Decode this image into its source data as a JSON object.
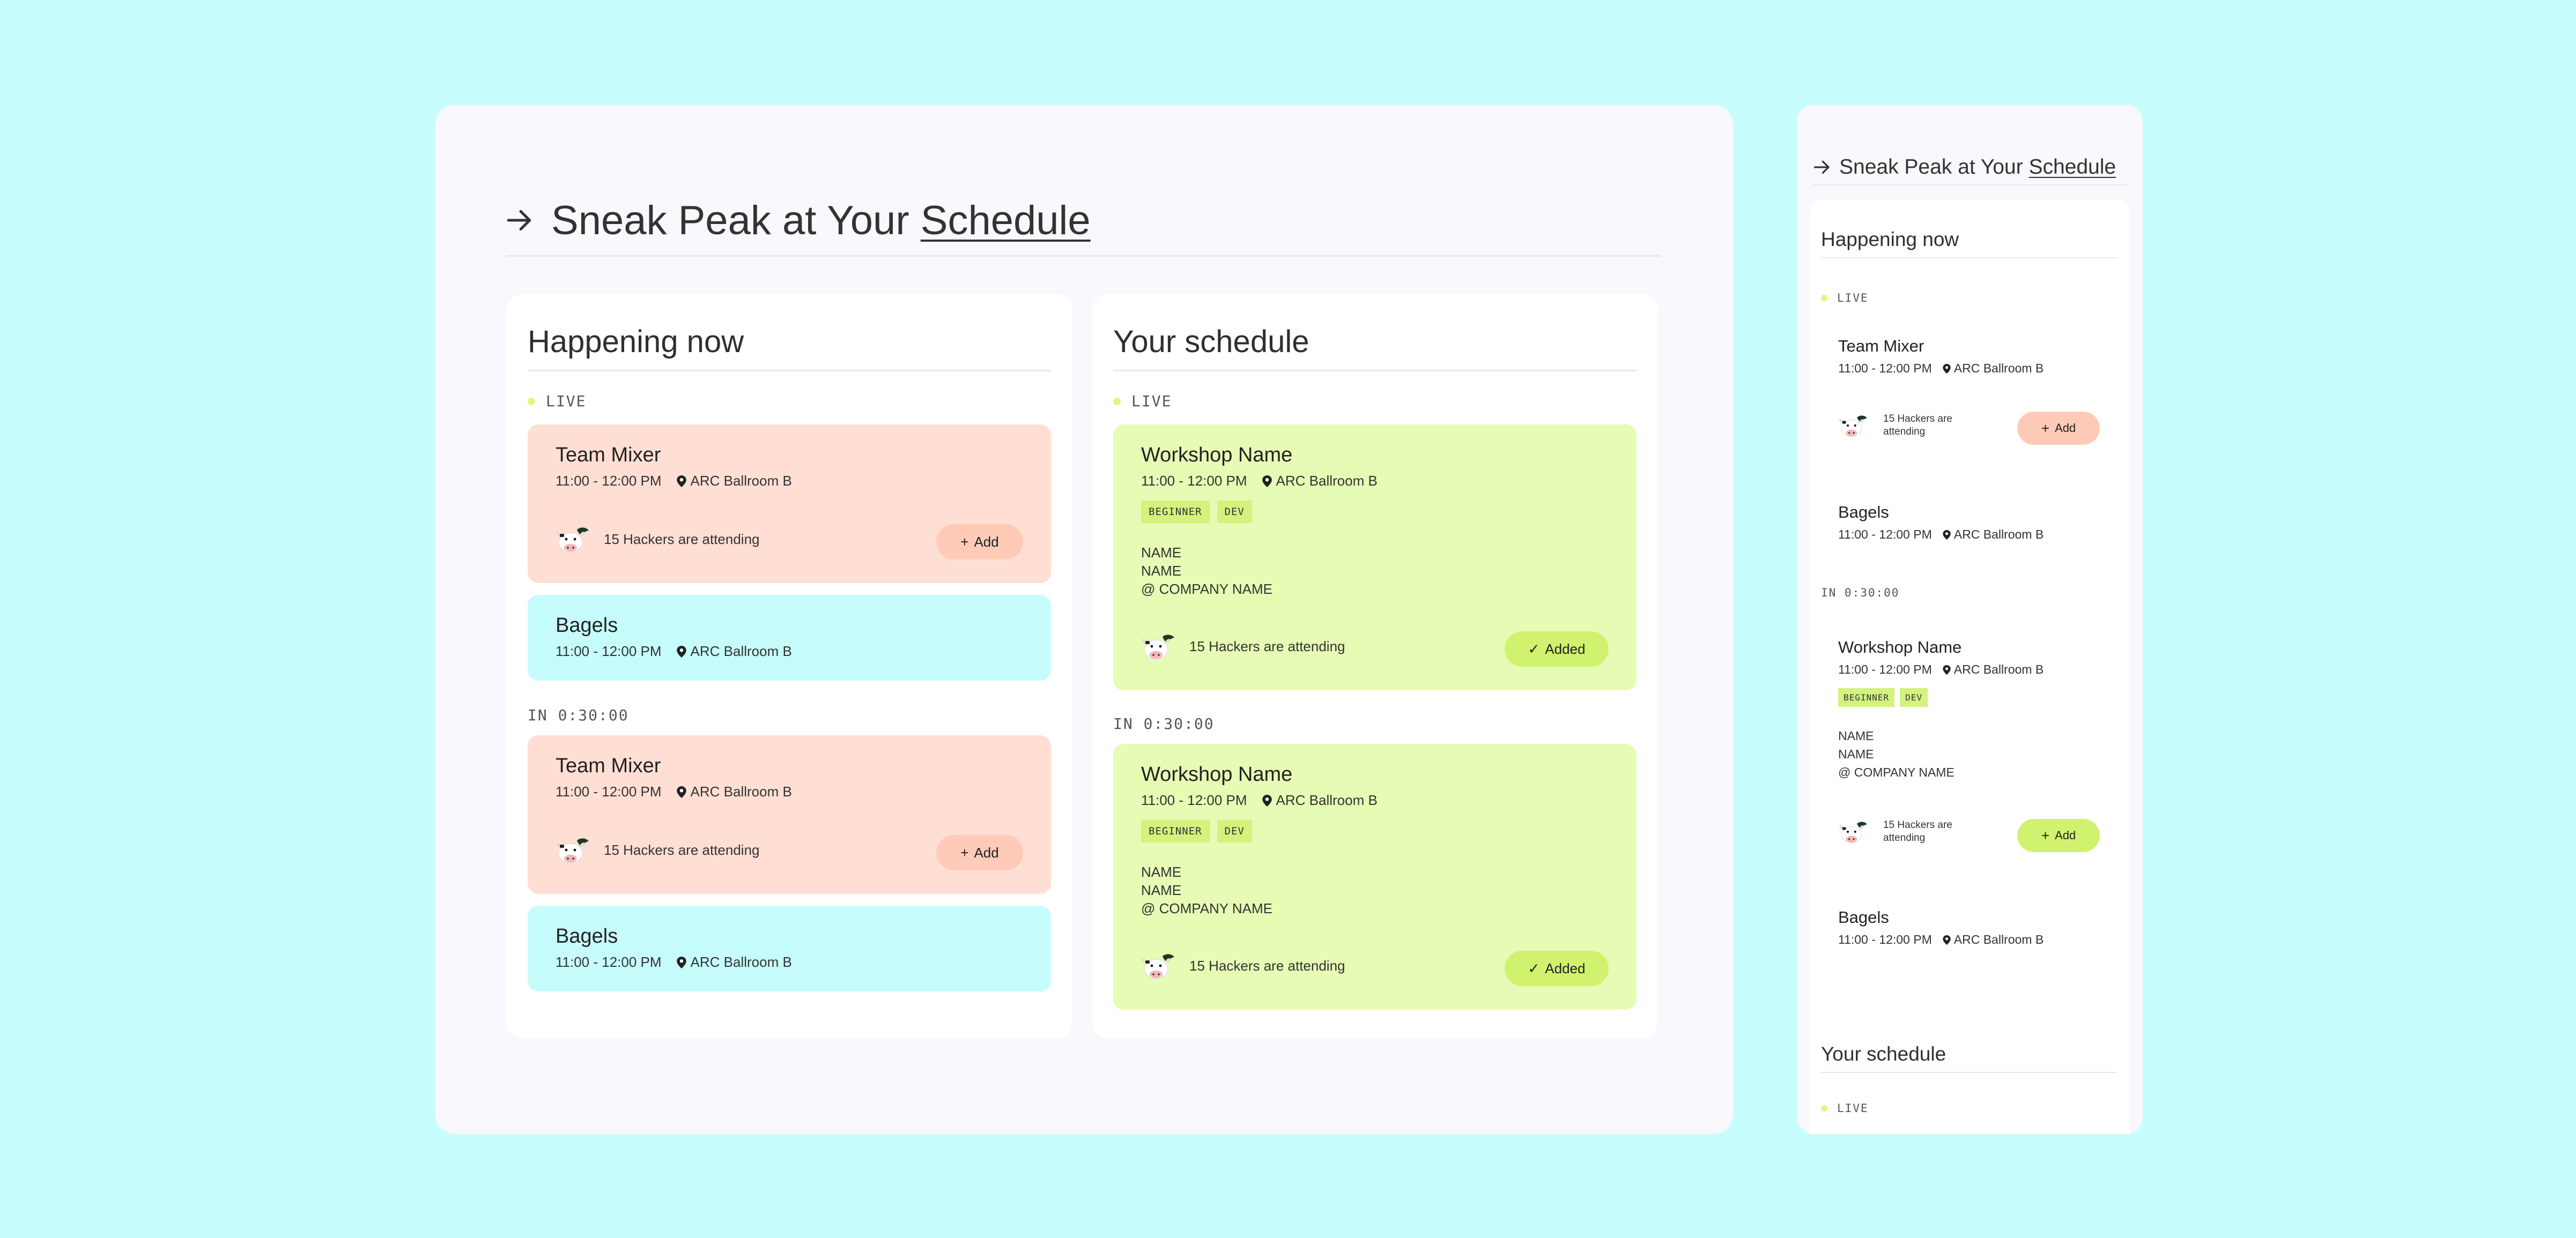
{
  "heading": {
    "prefix": "Sneak Peak at Your ",
    "underlined": "Schedule"
  },
  "happening": {
    "title": "Happening now",
    "live_label": "LIVE",
    "soon_label": "IN 0:30:00",
    "live_cards": [
      {
        "title": "Team Mixer",
        "time": "11:00 - 12:00 PM",
        "location": "ARC Ballroom B",
        "attending": "15 Hackers are attending",
        "button": "Add"
      },
      {
        "title": "Bagels",
        "time": "11:00 - 12:00 PM",
        "location": "ARC Ballroom B"
      }
    ],
    "soon_cards": [
      {
        "title": "Team Mixer",
        "time": "11:00 - 12:00 PM",
        "location": "ARC Ballroom B",
        "attending": "15 Hackers are attending",
        "button": "Add"
      },
      {
        "title": "Bagels",
        "time": "11:00 - 12:00 PM",
        "location": "ARC Ballroom B"
      }
    ]
  },
  "schedule": {
    "title": "Your schedule",
    "live_label": "LIVE",
    "soon_label": "IN 0:30:00",
    "cards": [
      {
        "title": "Workshop Name",
        "time": "11:00 - 12:00 PM",
        "location": "ARC Ballroom B",
        "tags": [
          "BEGINNER",
          "DEV"
        ],
        "speaker_line1": "NAME",
        "speaker_line2": "NAME",
        "speaker_line3": "@ COMPANY NAME",
        "attending": "15 Hackers are attending",
        "button": "Added"
      },
      {
        "title": "Workshop Name",
        "time": "11:00 - 12:00 PM",
        "location": "ARC Ballroom B",
        "tags": [
          "BEGINNER",
          "DEV"
        ],
        "speaker_line1": "NAME",
        "speaker_line2": "NAME",
        "speaker_line3": "@ COMPANY NAME",
        "attending": "15 Hackers are attending",
        "button": "Added"
      }
    ]
  },
  "mobile": {
    "happening": {
      "title": "Happening now",
      "live_label": "LIVE",
      "soon_label": "IN 0:30:00",
      "cards": [
        {
          "title": "Team Mixer",
          "time": "11:00 - 12:00 PM",
          "location": "ARC Ballroom B",
          "attending": "15 Hackers are attending",
          "button": "Add"
        },
        {
          "title": "Bagels",
          "time": "11:00 - 12:00 PM",
          "location": "ARC Ballroom B"
        },
        {
          "title": "Workshop Name",
          "time": "11:00 - 12:00 PM",
          "location": "ARC Ballroom B",
          "tags": [
            "BEGINNER",
            "DEV"
          ],
          "speaker_line1": "NAME",
          "speaker_line2": "NAME",
          "speaker_line3": "@ COMPANY NAME",
          "attending": "15 Hackers are attending",
          "button": "Add"
        },
        {
          "title": "Bagels",
          "time": "11:00 - 12:00 PM",
          "location": "ARC Ballroom B"
        }
      ]
    },
    "schedule": {
      "title": "Your schedule",
      "live_label": "LIVE"
    }
  },
  "colors": {
    "background": "#c8fdfd",
    "panel": "#f8f8fd",
    "peach_card": "#ffdfd4",
    "cyan_card": "#c7fcfc",
    "lime_card": "#e6fbb4",
    "live_dot": "#dcf785",
    "add_button": "#ffcbb8",
    "added_button": "#d0f26e"
  },
  "icons": {
    "heading": "arrow-right-icon",
    "location": "map-pin-icon",
    "attendees": "cow-avatar-icon",
    "add": "plus-icon",
    "added": "check-icon"
  }
}
